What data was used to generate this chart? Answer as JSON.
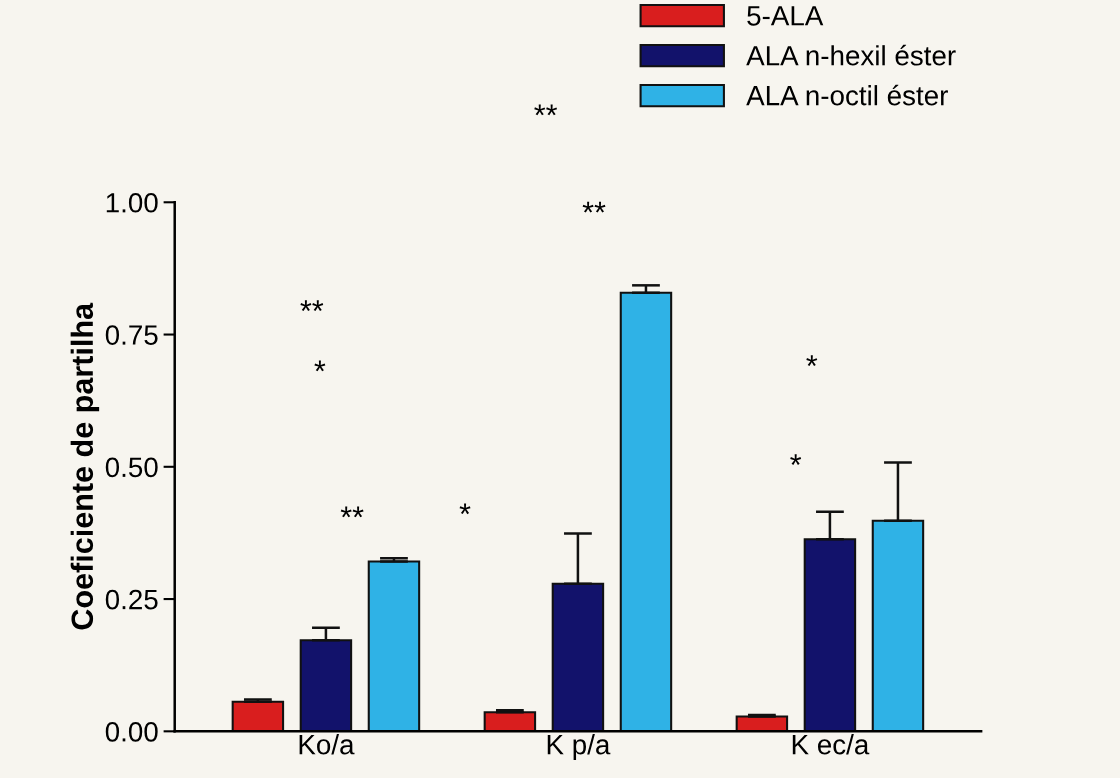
{
  "chart_data": {
    "type": "bar",
    "ylabel": "Coeficiente de partilha",
    "categories": [
      "Ko/a",
      "K p/a",
      "K ec/a"
    ],
    "series": [
      {
        "name": "5-ALA",
        "color": "#d91e1e",
        "values": [
          0.056,
          0.036,
          0.028
        ],
        "errors": [
          [
            0.056,
            0.06
          ],
          [
            0.036,
            0.04
          ],
          [
            0.028,
            0.031
          ]
        ]
      },
      {
        "name": "ALA n-hexil éster",
        "color": "#12126b",
        "values": [
          0.172,
          0.279,
          0.363
        ],
        "errors": [
          [
            0.172,
            0.196
          ],
          [
            0.279,
            0.374
          ],
          [
            0.363,
            0.415
          ]
        ]
      },
      {
        "name": "ALA n-octil éster",
        "color": "#2fb2e6",
        "values": [
          0.321,
          0.829,
          0.398
        ],
        "errors": [
          [
            0.321,
            0.327
          ],
          [
            0.829,
            0.843
          ],
          [
            0.398,
            0.508
          ]
        ]
      }
    ],
    "ylim": [
      0,
      1.0
    ],
    "yticks": [
      {
        "value": 0,
        "label": "0.00"
      },
      {
        "value": 0.25,
        "label": "0.25"
      },
      {
        "value": 0.5,
        "label": "0.50"
      },
      {
        "value": 0.75,
        "label": "0.75"
      },
      {
        "value": 1.0,
        "label": "1.00"
      }
    ],
    "grid": false,
    "legend": "top right",
    "annotations": [
      "**",
      "*",
      "**",
      "**",
      "**",
      "*",
      "*",
      "*"
    ]
  }
}
